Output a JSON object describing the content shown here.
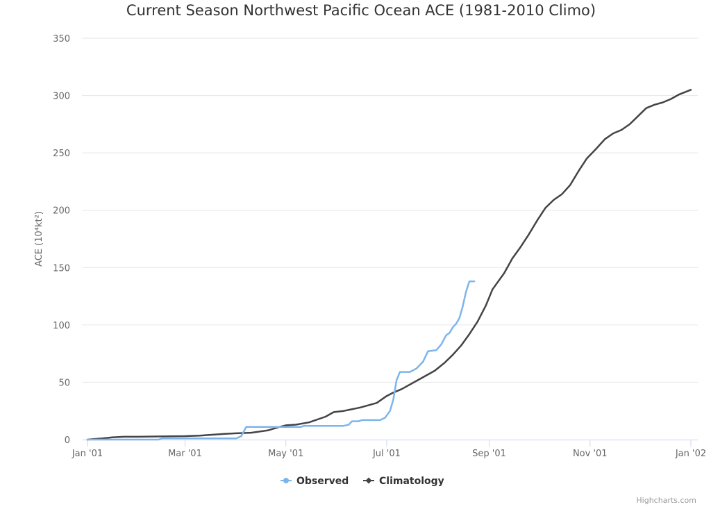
{
  "chart_data": {
    "type": "line",
    "title": "Current Season Northwest Pacific Ocean ACE (1981-2010 Climo)",
    "ylabel": "ACE (10⁴kt²)",
    "xlabel": "",
    "ylim": [
      0,
      350
    ],
    "yticks": [
      "0",
      "50",
      "100",
      "150",
      "200",
      "250",
      "300",
      "350"
    ],
    "x_range": [
      "2001-01-01",
      "2002-01-01"
    ],
    "xticks": [
      {
        "date": "2001-01-01",
        "label": "Jan '01"
      },
      {
        "date": "2001-03-01",
        "label": "Mar '01"
      },
      {
        "date": "2001-05-01",
        "label": "May '01"
      },
      {
        "date": "2001-07-01",
        "label": "Jul '01"
      },
      {
        "date": "2001-09-01",
        "label": "Sep '01"
      },
      {
        "date": "2001-11-01",
        "label": "Nov '01"
      },
      {
        "date": "2002-01-01",
        "label": "Jan '02"
      }
    ],
    "grid": true,
    "legend_position": "bottom-center",
    "series": [
      {
        "name": "Observed",
        "color": "#7cb5ec",
        "points": [
          [
            "2001-01-01",
            0
          ],
          [
            "2001-01-15",
            0
          ],
          [
            "2001-02-05",
            0
          ],
          [
            "2001-02-13",
            0
          ],
          [
            "2001-02-15",
            1
          ],
          [
            "2001-03-15",
            1
          ],
          [
            "2001-04-01",
            1
          ],
          [
            "2001-04-04",
            3
          ],
          [
            "2001-04-07",
            11
          ],
          [
            "2001-04-20",
            11
          ],
          [
            "2001-05-01",
            11
          ],
          [
            "2001-05-10",
            11
          ],
          [
            "2001-05-12",
            12
          ],
          [
            "2001-06-01",
            12
          ],
          [
            "2001-06-05",
            12
          ],
          [
            "2001-06-08",
            13
          ],
          [
            "2001-06-10",
            16
          ],
          [
            "2001-06-14",
            16
          ],
          [
            "2001-06-16",
            17
          ],
          [
            "2001-06-27",
            17
          ],
          [
            "2001-06-30",
            19
          ],
          [
            "2001-07-03",
            25
          ],
          [
            "2001-07-05",
            35
          ],
          [
            "2001-07-07",
            52
          ],
          [
            "2001-07-09",
            59
          ],
          [
            "2001-07-15",
            59
          ],
          [
            "2001-07-19",
            62
          ],
          [
            "2001-07-23",
            68
          ],
          [
            "2001-07-26",
            77
          ],
          [
            "2001-07-31",
            78
          ],
          [
            "2001-08-03",
            83
          ],
          [
            "2001-08-06",
            91
          ],
          [
            "2001-08-08",
            93
          ],
          [
            "2001-08-10",
            98
          ],
          [
            "2001-08-12",
            101
          ],
          [
            "2001-08-14",
            106
          ],
          [
            "2001-08-16",
            116
          ],
          [
            "2001-08-18",
            129
          ],
          [
            "2001-08-20",
            138
          ],
          [
            "2001-08-23",
            138
          ]
        ]
      },
      {
        "name": "Climatology",
        "color": "#434348",
        "points": [
          [
            "2001-01-01",
            0
          ],
          [
            "2001-01-10",
            1
          ],
          [
            "2001-01-16",
            2
          ],
          [
            "2001-01-23",
            2.5
          ],
          [
            "2001-02-01",
            2.5
          ],
          [
            "2001-02-15",
            2.8
          ],
          [
            "2001-03-01",
            3
          ],
          [
            "2001-03-10",
            3.5
          ],
          [
            "2001-03-15",
            4
          ],
          [
            "2001-03-25",
            5
          ],
          [
            "2001-04-01",
            5.5
          ],
          [
            "2001-04-10",
            6
          ],
          [
            "2001-04-20",
            8
          ],
          [
            "2001-04-27",
            11
          ],
          [
            "2001-05-01",
            12.5
          ],
          [
            "2001-05-07",
            13
          ],
          [
            "2001-05-15",
            15
          ],
          [
            "2001-05-25",
            20
          ],
          [
            "2001-05-30",
            24
          ],
          [
            "2001-06-05",
            25
          ],
          [
            "2001-06-15",
            28
          ],
          [
            "2001-06-25",
            32
          ],
          [
            "2001-07-01",
            38
          ],
          [
            "2001-07-05",
            41
          ],
          [
            "2001-07-10",
            44
          ],
          [
            "2001-07-20",
            52
          ],
          [
            "2001-07-30",
            60
          ],
          [
            "2001-08-05",
            67
          ],
          [
            "2001-08-10",
            74
          ],
          [
            "2001-08-15",
            82
          ],
          [
            "2001-08-20",
            92
          ],
          [
            "2001-08-25",
            103
          ],
          [
            "2001-08-30",
            117
          ],
          [
            "2001-09-03",
            131
          ],
          [
            "2001-09-10",
            145
          ],
          [
            "2001-09-15",
            158
          ],
          [
            "2001-09-20",
            168
          ],
          [
            "2001-09-25",
            179
          ],
          [
            "2001-09-30",
            191
          ],
          [
            "2001-10-05",
            202
          ],
          [
            "2001-10-10",
            209
          ],
          [
            "2001-10-15",
            214
          ],
          [
            "2001-10-20",
            222
          ],
          [
            "2001-10-25",
            234
          ],
          [
            "2001-10-30",
            245
          ],
          [
            "2001-11-05",
            254
          ],
          [
            "2001-11-10",
            262
          ],
          [
            "2001-11-15",
            267
          ],
          [
            "2001-11-20",
            270
          ],
          [
            "2001-11-25",
            275
          ],
          [
            "2001-11-30",
            282
          ],
          [
            "2001-12-05",
            289
          ],
          [
            "2001-12-10",
            292
          ],
          [
            "2001-12-15",
            294
          ],
          [
            "2001-12-20",
            297
          ],
          [
            "2001-12-25",
            301
          ],
          [
            "2002-01-01",
            305
          ]
        ]
      }
    ]
  },
  "credits": "Highcharts.com"
}
